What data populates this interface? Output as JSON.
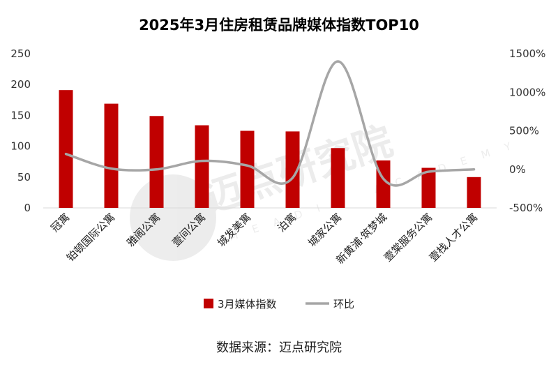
{
  "chart_data": {
    "type": "bar+line",
    "title": "2025年3月住房租赁品牌媒体指数TOP10",
    "categories": [
      "冠寓",
      "铂顿国际公寓",
      "雅阁公寓",
      "壹间公寓",
      "城发美寓",
      "泊寓",
      "城家公寓",
      "新黄浦·筑梦城",
      "壹棠服务公寓",
      "壹栈人才公寓"
    ],
    "series": [
      {
        "name": "3月媒体指数",
        "type": "bar",
        "axis": "left",
        "color": "#C00000",
        "values": [
          191,
          169,
          149,
          134,
          125,
          124,
          97,
          77,
          65,
          50
        ]
      },
      {
        "name": "环比",
        "type": "line",
        "axis": "right",
        "color": "#A6A6A6",
        "values": [
          200,
          10,
          0,
          110,
          50,
          -110,
          1400,
          -120,
          -30,
          0
        ]
      }
    ],
    "y_left": {
      "min": 0,
      "max": 250,
      "step": 50,
      "ticks": [
        "0",
        "50",
        "100",
        "150",
        "200",
        "250"
      ]
    },
    "y_right": {
      "min": -500,
      "max": 1500,
      "step": 500,
      "ticks": [
        "-500%",
        "0%",
        "500%",
        "1000%",
        "1500%"
      ]
    },
    "legend": [
      "3月媒体指数",
      "环比"
    ],
    "legend_position": "bottom",
    "grid": false
  },
  "watermark": {
    "text": "迈点研究院",
    "sub": "MEADIN ACADEMY"
  },
  "source": "数据来源：迈点研究院"
}
